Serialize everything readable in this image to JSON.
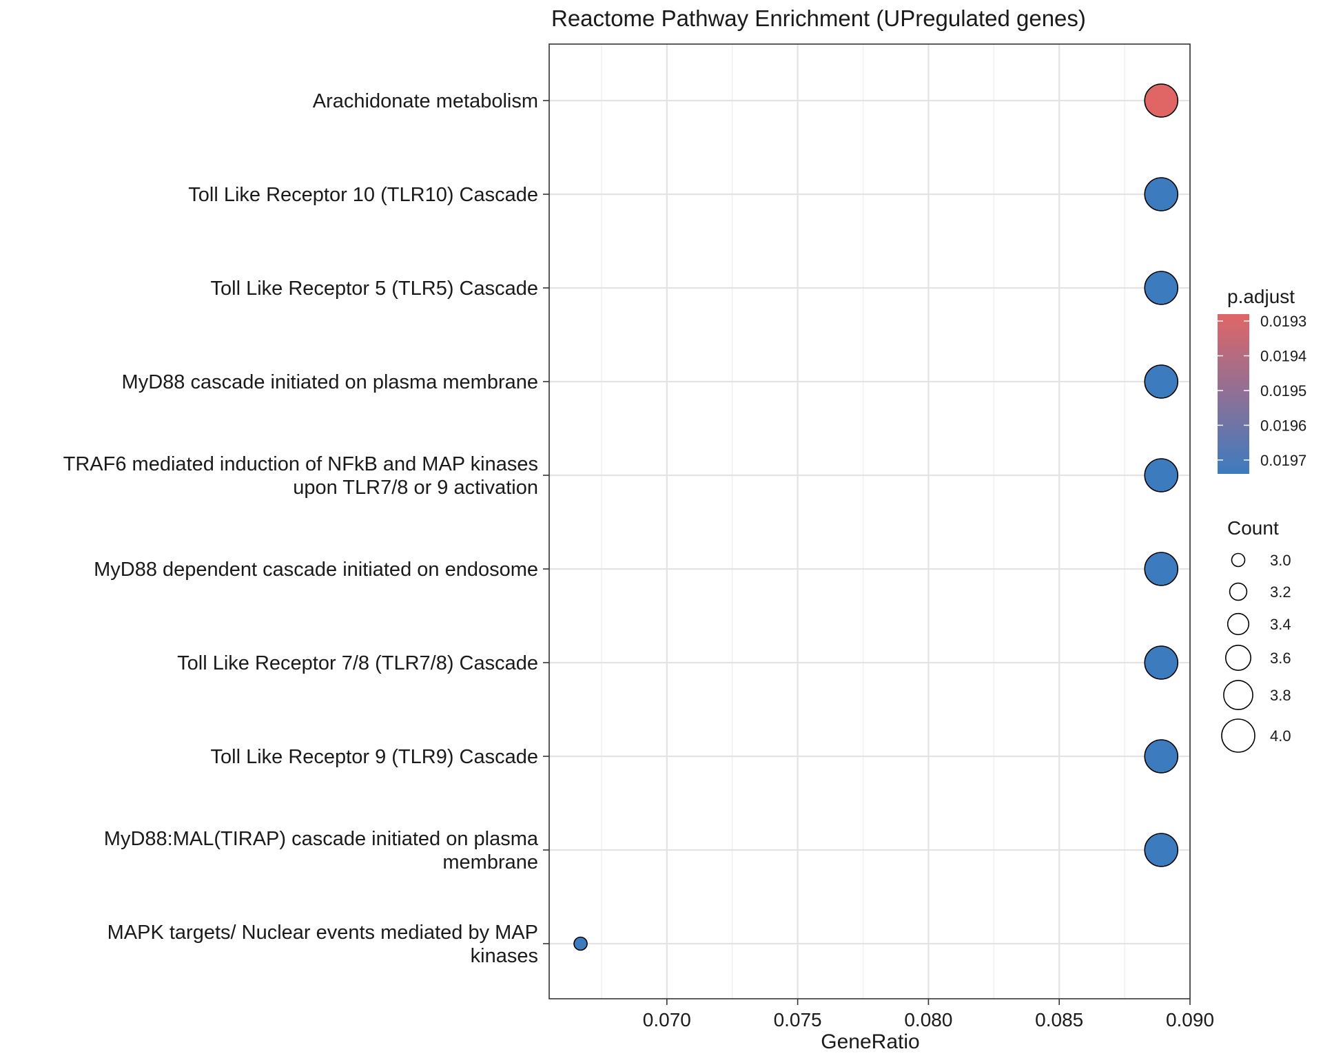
{
  "chart_data": {
    "type": "scatter",
    "title": "Reactome Pathway Enrichment (UPregulated genes)",
    "xlabel": "GeneRatio",
    "ylabel": "",
    "xlim": [
      0.0655,
      0.09
    ],
    "x_ticks": [
      0.07,
      0.075,
      0.08,
      0.085,
      0.09
    ],
    "x_tick_labels": [
      "0.070",
      "0.075",
      "0.080",
      "0.085",
      "0.090"
    ],
    "grid": true,
    "legend_position": "right",
    "categories": [
      "Arachidonate metabolism",
      "Toll Like Receptor 10 (TLR10) Cascade",
      "Toll Like Receptor 5 (TLR5) Cascade",
      "MyD88 cascade initiated on plasma membrane",
      "TRAF6 mediated induction of NFkB and MAP kinases upon TLR7/8 or 9 activation",
      "MyD88 dependent cascade initiated on endosome",
      "Toll Like Receptor 7/8 (TLR7/8) Cascade",
      "Toll Like Receptor 9 (TLR9) Cascade",
      "MyD88:MAL(TIRAP) cascade initiated on plasma membrane",
      "MAPK targets/ Nuclear events mediated by MAP kinases"
    ],
    "category_lines": [
      [
        "Arachidonate metabolism"
      ],
      [
        "Toll Like Receptor 10 (TLR10) Cascade"
      ],
      [
        "Toll Like Receptor 5 (TLR5) Cascade"
      ],
      [
        "MyD88 cascade initiated on plasma membrane"
      ],
      [
        "TRAF6 mediated induction of NFkB and MAP kinases",
        "upon TLR7/8 or 9 activation"
      ],
      [
        "MyD88 dependent cascade initiated on endosome"
      ],
      [
        "Toll Like Receptor 7/8 (TLR7/8) Cascade"
      ],
      [
        "Toll Like Receptor 9 (TLR9) Cascade"
      ],
      [
        "MyD88:MAL(TIRAP) cascade initiated on plasma",
        "membrane"
      ],
      [
        "MAPK targets/ Nuclear events mediated by MAP",
        "kinases"
      ]
    ],
    "points": [
      {
        "category": "Arachidonate metabolism",
        "gene_ratio": 0.0889,
        "count": 4,
        "p_adjust": 0.01928
      },
      {
        "category": "Toll Like Receptor 10 (TLR10) Cascade",
        "gene_ratio": 0.0889,
        "count": 4,
        "p_adjust": 0.01974
      },
      {
        "category": "Toll Like Receptor 5 (TLR5) Cascade",
        "gene_ratio": 0.0889,
        "count": 4,
        "p_adjust": 0.01974
      },
      {
        "category": "MyD88 cascade initiated on plasma membrane",
        "gene_ratio": 0.0889,
        "count": 4,
        "p_adjust": 0.01974
      },
      {
        "category": "TRAF6 mediated induction of NFkB and MAP kinases upon TLR7/8 or 9 activation",
        "gene_ratio": 0.0889,
        "count": 4,
        "p_adjust": 0.01974
      },
      {
        "category": "MyD88 dependent cascade initiated on endosome",
        "gene_ratio": 0.0889,
        "count": 4,
        "p_adjust": 0.01974
      },
      {
        "category": "Toll Like Receptor 7/8 (TLR7/8) Cascade",
        "gene_ratio": 0.0889,
        "count": 4,
        "p_adjust": 0.01974
      },
      {
        "category": "Toll Like Receptor 9 (TLR9) Cascade",
        "gene_ratio": 0.0889,
        "count": 4,
        "p_adjust": 0.01974
      },
      {
        "category": "MyD88:MAL(TIRAP) cascade initiated on plasma membrane",
        "gene_ratio": 0.0889,
        "count": 4,
        "p_adjust": 0.01974
      },
      {
        "category": "MAPK targets/ Nuclear events mediated by MAP kinases",
        "gene_ratio": 0.0667,
        "count": 3,
        "p_adjust": 0.01974
      }
    ],
    "color_legend": {
      "title": "p.adjust",
      "min": 0.01928,
      "max": 0.01974,
      "low_color": "#e06666",
      "high_color": "#3d7bbf",
      "ticks": [
        0.0193,
        0.0194,
        0.0195,
        0.0196,
        0.0197
      ],
      "tick_labels": [
        "0.0193",
        "0.0194",
        "0.0195",
        "0.0196",
        "0.0197"
      ]
    },
    "size_legend": {
      "title": "Count",
      "values": [
        3.0,
        3.2,
        3.4,
        3.6,
        3.8,
        4.0
      ],
      "labels": [
        "3.0",
        "3.2",
        "3.4",
        "3.6",
        "3.8",
        "4.0"
      ]
    }
  }
}
